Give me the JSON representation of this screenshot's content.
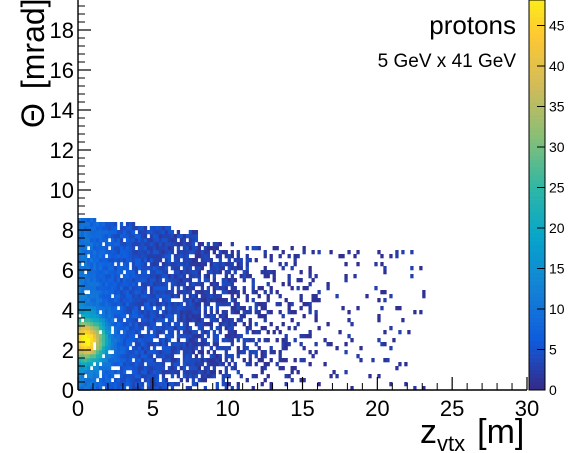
{
  "chart_data": {
    "type": "heatmap",
    "title": "",
    "annotations": [
      "protons",
      "5 GeV x 41 GeV"
    ],
    "xlabel": "z",
    "xlabel_sub": "vtx",
    "xlabel_unit": "[m]",
    "ylabel": "Θ",
    "ylabel_unit": "[mrad]",
    "xlim": [
      0,
      30
    ],
    "ylim": [
      0,
      20
    ],
    "x_ticks": [
      0,
      5,
      10,
      15,
      20,
      25,
      30
    ],
    "y_ticks": [
      0,
      2,
      4,
      6,
      8,
      10,
      12,
      14,
      16,
      18
    ],
    "zlim": [
      0,
      50
    ],
    "z_ticks": [
      0,
      5,
      10,
      15,
      20,
      25,
      30,
      35,
      40,
      45
    ],
    "colormap": "parula",
    "colors": [
      "#352a87",
      "#0f5cdd",
      "#1481d6",
      "#06a4ca",
      "#2eb7a4",
      "#87bf77",
      "#d1bb59",
      "#fec832",
      "#f9fb0e"
    ],
    "bin_size": [
      0.2,
      0.2
    ],
    "description_bins": [
      {
        "x_range": [
          0,
          2
        ],
        "y_range": [
          1.4,
          3.6
        ],
        "z_peak": 44
      },
      {
        "x_range": [
          0,
          8
        ],
        "y_range": [
          0,
          8.6
        ],
        "z_typical": 10
      },
      {
        "x_range": [
          8,
          16
        ],
        "y_range": [
          0,
          7
        ],
        "z_typical": 3
      },
      {
        "x_range": [
          16,
          23
        ],
        "y_range": [
          0.5,
          7
        ],
        "z_typical": 1
      }
    ]
  }
}
